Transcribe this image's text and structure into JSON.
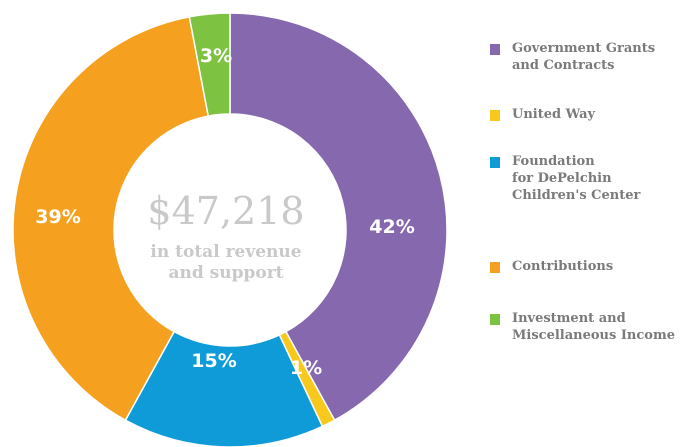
{
  "chart_data": {
    "type": "pie",
    "style": "donut",
    "categories": [
      "Government Grants\nand Contracts",
      "United Way",
      "Foundation\nfor DePelchin\nChildren's Center",
      "Contributions",
      "Investment and\nMiscellaneous Income"
    ],
    "values": [
      42,
      1,
      15,
      39,
      3
    ],
    "labels": [
      "42%",
      "1%",
      "15%",
      "39%",
      "3%"
    ],
    "colors": [
      "#8668ae",
      "#f8c81c",
      "#0e9bd7",
      "#f6a01f",
      "#7ec242"
    ],
    "center_amount": "$47,218",
    "center_text": [
      "in total revenue",
      "and support"
    ],
    "legend_position": "right"
  }
}
